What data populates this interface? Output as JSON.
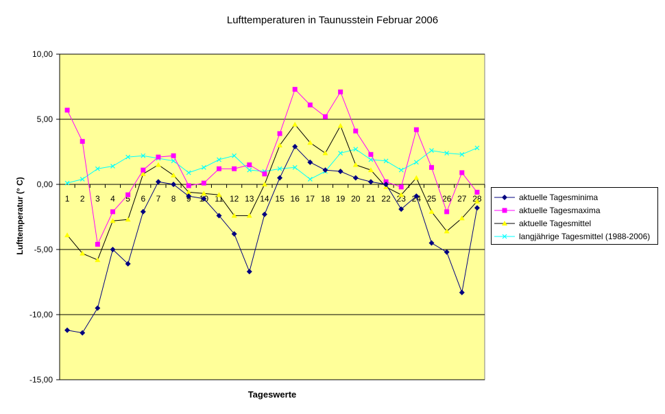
{
  "chart_data": {
    "type": "line",
    "title": "Lufttemperaturen in Taunusstein  Februar 2006",
    "xlabel": "Tageswerte",
    "ylabel": "Lufttemperatur (° C)",
    "ylim": [
      -15,
      10
    ],
    "ytick_values": [
      -15,
      -10,
      -5,
      0,
      5,
      10
    ],
    "ytick_labels": [
      "-15,00",
      "-10,00",
      "-5,00",
      "0,00",
      "5,00",
      "10,00"
    ],
    "categories": [
      "1",
      "2",
      "3",
      "4",
      "5",
      "6",
      "7",
      "8",
      "9",
      "10",
      "11",
      "12",
      "13",
      "14",
      "15",
      "16",
      "17",
      "18",
      "19",
      "20",
      "21",
      "22",
      "23",
      "24",
      "25",
      "26",
      "27",
      "28"
    ],
    "grid": "horizontal major lines",
    "legend_position": "right",
    "plot_background": "#FFFF99",
    "series": [
      {
        "name": "aktuelle Tagesminima",
        "color": "#000080",
        "marker": "diamond",
        "values": [
          -11.2,
          -11.4,
          -9.5,
          -5.0,
          -6.1,
          -2.1,
          0.2,
          0.0,
          -0.9,
          -1.1,
          -2.4,
          -3.8,
          -6.7,
          -2.3,
          0.5,
          2.9,
          1.7,
          1.1,
          1.0,
          0.5,
          0.2,
          0.0,
          -1.9,
          -0.9,
          -4.5,
          -5.2,
          -8.3,
          -1.8
        ]
      },
      {
        "name": "aktuelle Tagesmaxima",
        "color": "#FF00FF",
        "marker": "square",
        "values": [
          5.7,
          3.3,
          -4.6,
          -2.1,
          -0.8,
          1.1,
          2.1,
          2.2,
          -0.1,
          0.1,
          1.2,
          1.2,
          1.5,
          0.8,
          3.9,
          7.3,
          6.1,
          5.2,
          7.1,
          4.1,
          2.3,
          0.2,
          -0.2,
          4.2,
          1.3,
          -2.1,
          0.9,
          -0.6
        ]
      },
      {
        "name": "aktuelle Tagesmittel",
        "color": "#FFFF00",
        "line_color": "#000000",
        "marker": "triangle",
        "values": [
          -3.9,
          -5.3,
          -5.8,
          -2.8,
          -2.7,
          0.8,
          1.5,
          0.7,
          -0.6,
          -0.7,
          -0.8,
          -2.4,
          -2.4,
          0.0,
          3.0,
          4.6,
          3.2,
          2.4,
          4.5,
          1.5,
          1.1,
          -0.2,
          -0.8,
          0.5,
          -2.1,
          -3.6,
          -2.6,
          -1.3
        ]
      },
      {
        "name": "langjährige Tagesmittel (1988-2006)",
        "color": "#00FFFF",
        "marker": "x",
        "values": [
          0.1,
          0.4,
          1.2,
          1.4,
          2.1,
          2.2,
          2.0,
          1.8,
          0.9,
          1.3,
          1.9,
          2.2,
          1.1,
          1.0,
          1.2,
          1.3,
          0.4,
          1.0,
          2.4,
          2.7,
          1.9,
          1.8,
          1.1,
          1.7,
          2.6,
          2.4,
          2.3,
          2.8
        ]
      }
    ]
  }
}
